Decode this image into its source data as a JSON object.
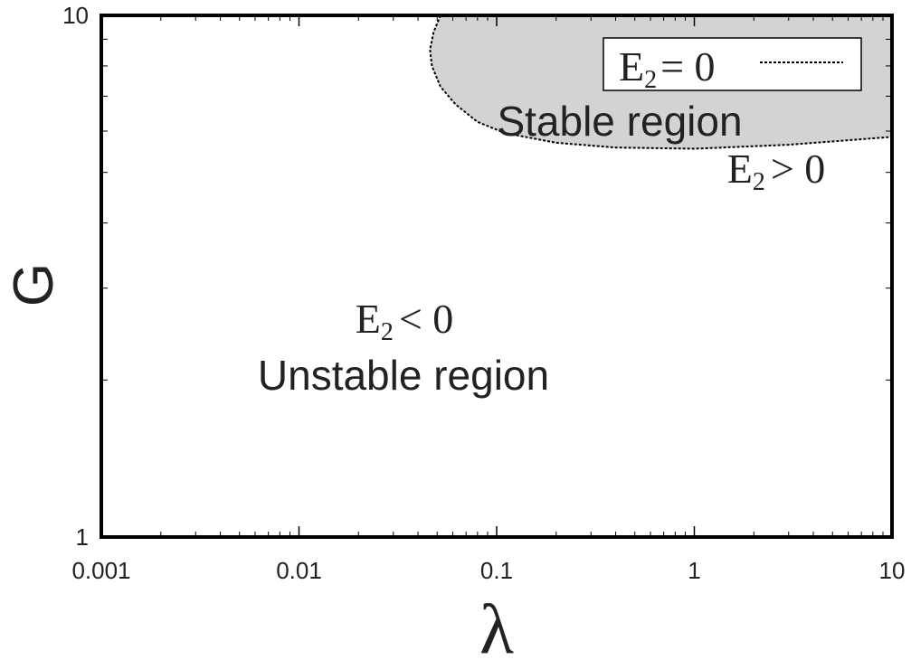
{
  "chart_data": {
    "type": "area",
    "xlabel": "λ",
    "ylabel": "G",
    "xscale": "log",
    "yscale": "log",
    "xlim": [
      0.001,
      10
    ],
    "ylim": [
      1,
      10
    ],
    "x_ticks": [
      "0.001",
      "0.01",
      "0.1",
      "1",
      "10"
    ],
    "y_ticks": [
      "1",
      "10"
    ],
    "grid": false,
    "legend_position": "top-right",
    "series": [
      {
        "name": "E2 = 0",
        "legend_label": {
          "main": "E",
          "sub": "2",
          "rest": "= 0"
        },
        "style": "dotted",
        "color": "#000000",
        "points": [
          [
            0.052,
            10.0
          ],
          [
            0.048,
            9.3
          ],
          [
            0.046,
            8.6
          ],
          [
            0.047,
            8.0
          ],
          [
            0.052,
            7.3
          ],
          [
            0.062,
            6.75
          ],
          [
            0.08,
            6.25
          ],
          [
            0.11,
            5.95
          ],
          [
            0.2,
            5.7
          ],
          [
            0.4,
            5.58
          ],
          [
            1.0,
            5.55
          ],
          [
            3.0,
            5.65
          ],
          [
            10.0,
            5.85
          ]
        ]
      }
    ],
    "fill_color": "#d3d3d3",
    "regions": [
      {
        "id": "stable",
        "label": "Stable region",
        "condition": {
          "main": "E",
          "sub": "2",
          "rest": "> 0"
        }
      },
      {
        "id": "unstable",
        "label": "Unstable region",
        "condition": {
          "main": "E",
          "sub": "2",
          "rest": "< 0"
        }
      }
    ]
  }
}
